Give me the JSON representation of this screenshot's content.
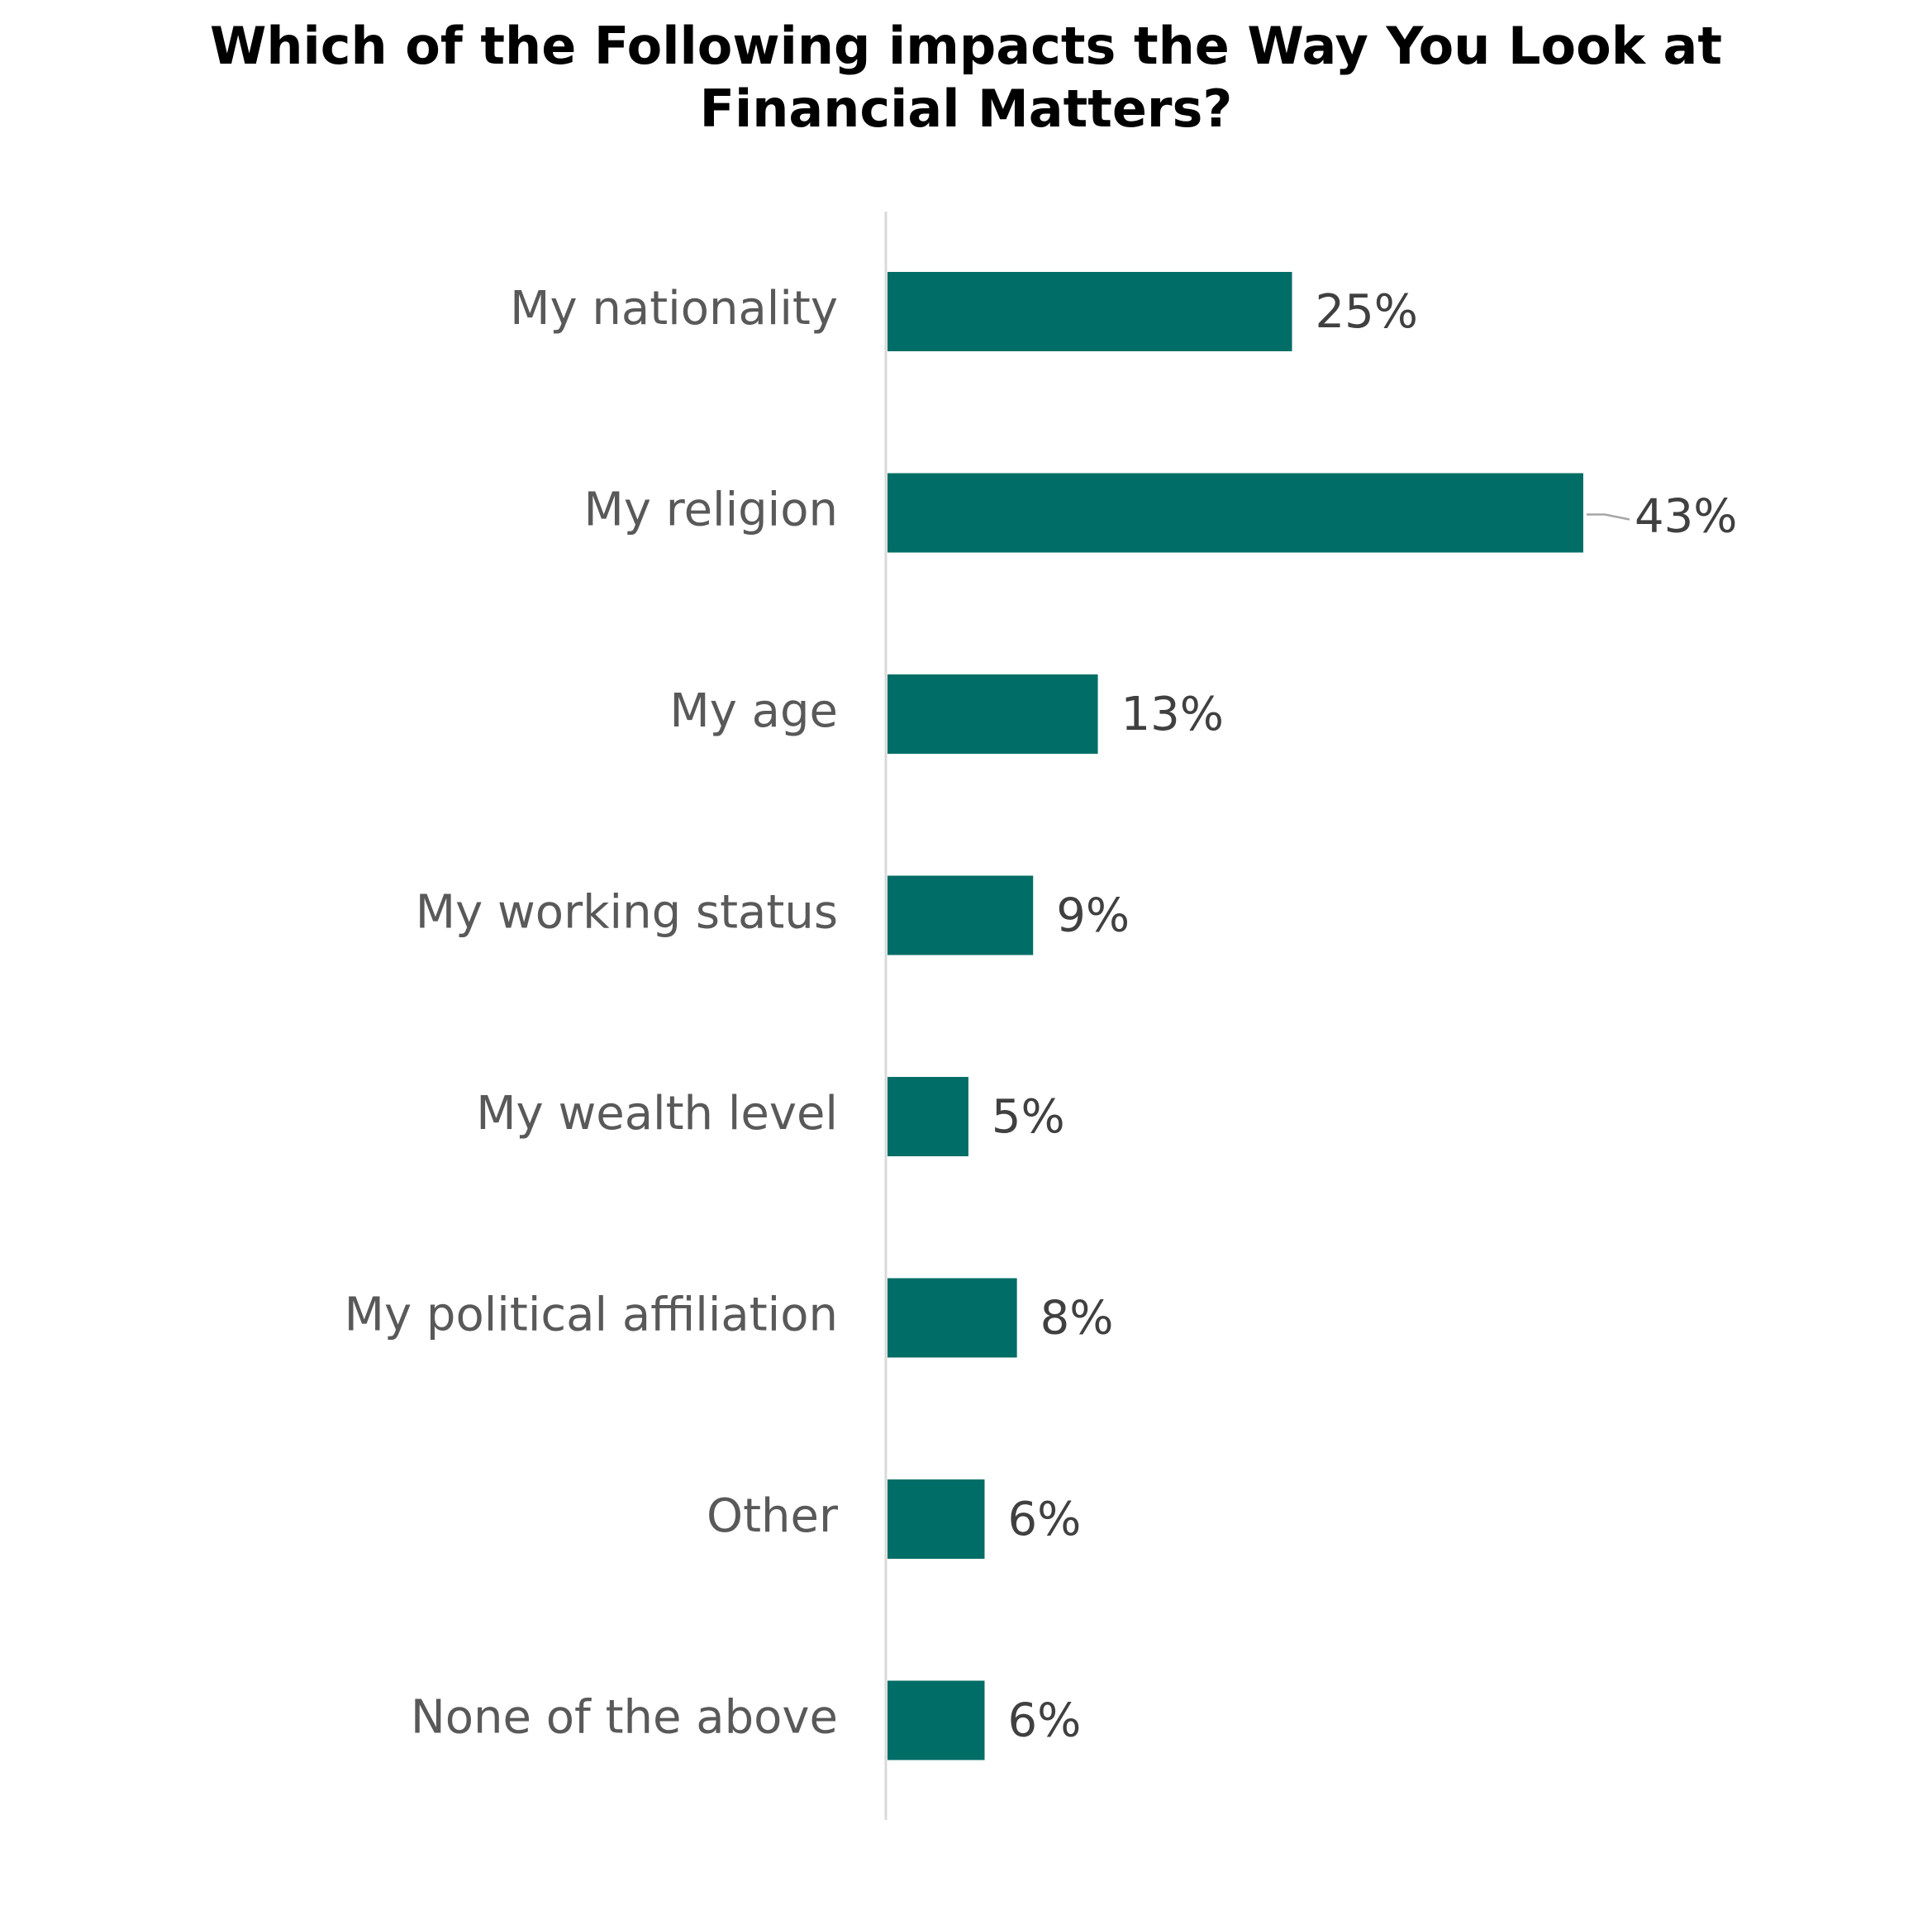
{
  "title_lines": [
    "Which of the Following impacts the Way You Look at",
    "Financial Matters?"
  ],
  "colors": {
    "bar": "#006e66",
    "axis": "#d9d9d9",
    "leader": "#a6a6a6"
  },
  "chart_data": {
    "type": "bar",
    "orientation": "horizontal",
    "title": "Which of the Following impacts the Way You Look at Financial Matters?",
    "categories": [
      "My nationality",
      "My religion",
      "My age",
      "My working status",
      "My wealth level",
      "My political affiliation",
      "Other",
      "None of the above"
    ],
    "values": [
      25,
      43,
      13,
      9,
      5,
      8,
      6,
      6
    ],
    "value_labels": [
      "25%",
      "43%",
      "13%",
      "9%",
      "5%",
      "8%",
      "6%",
      "6%"
    ],
    "unit": "%",
    "xlim": [
      0,
      43
    ],
    "grid": false,
    "legend": "none"
  }
}
